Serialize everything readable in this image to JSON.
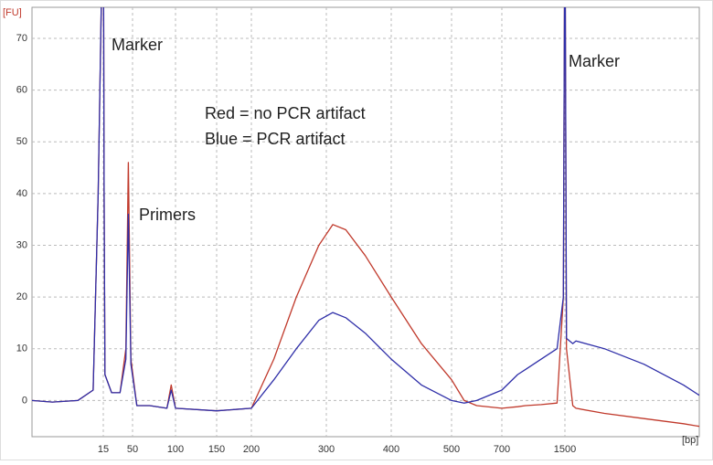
{
  "chart_data": {
    "type": "line",
    "y_label": "[FU]",
    "x_label": "[bp]",
    "annotations": [
      "Marker",
      "Marker",
      "Primers",
      "Red = no PCR artifact",
      "Blue = PCR artifact"
    ],
    "x": [
      1,
      5,
      10,
      13,
      14,
      15,
      16,
      17,
      25,
      35,
      42,
      45,
      48,
      55,
      70,
      90,
      95,
      100,
      150,
      200,
      230,
      260,
      290,
      310,
      330,
      360,
      400,
      450,
      500,
      550,
      600,
      700,
      900,
      1000,
      1200,
      1400,
      1480,
      1500,
      1520,
      1600,
      1640,
      2000,
      2500,
      3000,
      3200
    ],
    "series": [
      {
        "name": "no PCR artifact",
        "color": "#c0392b",
        "values": [
          0,
          -0.3,
          0,
          2,
          40,
          100,
          40,
          5,
          1.5,
          1.5,
          10,
          46,
          8,
          -1,
          -1,
          -1.5,
          3,
          -1.5,
          -2,
          -1.5,
          8,
          20,
          30,
          34,
          33,
          28,
          20,
          11,
          4,
          0,
          -1,
          -1.5,
          -1.2,
          -1,
          -0.8,
          -0.5,
          20,
          100,
          10,
          -1,
          -1.5,
          -2.5,
          -3.5,
          -4.5,
          -5
        ]
      },
      {
        "name": "PCR artifact",
        "color": "#2e2ea8",
        "values": [
          0,
          -0.3,
          0,
          2,
          40,
          100,
          40,
          5,
          1.5,
          1.5,
          8,
          36,
          7,
          -1,
          -1,
          -1.5,
          2,
          -1.5,
          -2,
          -1.5,
          4,
          10,
          15.5,
          17,
          16,
          13,
          8,
          3,
          0,
          -0.5,
          0,
          2,
          5,
          6,
          8,
          10,
          20,
          100,
          12,
          11,
          11.5,
          10,
          7,
          3,
          1
        ]
      }
    ],
    "xlim": [
      1,
      3200
    ],
    "xticks": [
      15,
      50,
      100,
      150,
      200,
      300,
      400,
      500,
      700,
      1500
    ],
    "ylim": [
      -7,
      76
    ],
    "yticks": [
      0,
      10,
      20,
      30,
      40,
      50,
      60,
      70
    ],
    "grid": true
  }
}
